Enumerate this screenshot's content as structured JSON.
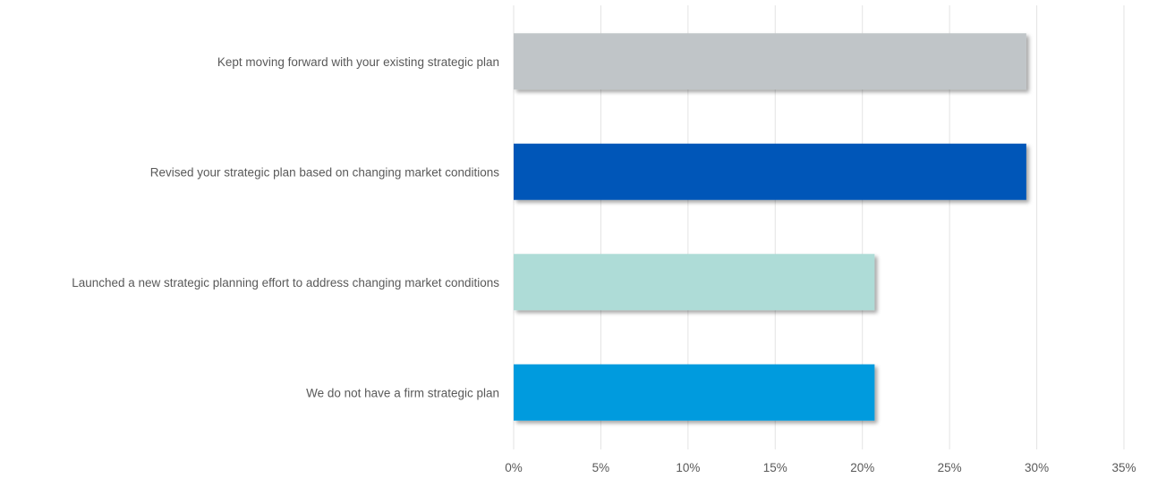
{
  "chart_data": {
    "type": "bar",
    "orientation": "horizontal",
    "categories": [
      "Kept moving forward with your existing strategic plan",
      "Revised your strategic plan based on changing market conditions",
      "Launched a new strategic planning effort to address changing market conditions",
      "We do not have a firm strategic plan"
    ],
    "values": [
      29.4,
      29.4,
      20.7,
      20.7
    ],
    "colors": [
      "#c0c5c8",
      "#0057b8",
      "#aedcd7",
      "#009bde"
    ],
    "xlim": [
      0,
      35
    ],
    "xticks": [
      0,
      5,
      10,
      15,
      20,
      25,
      30,
      35
    ],
    "xtick_labels": [
      "0%",
      "5%",
      "10%",
      "15%",
      "20%",
      "25%",
      "30%",
      "35%"
    ],
    "grid": "vertical",
    "legend": "none"
  }
}
